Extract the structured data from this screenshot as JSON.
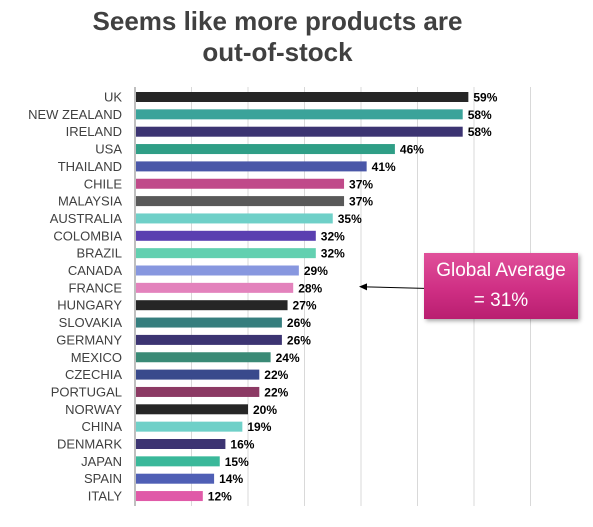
{
  "title_lines": [
    "Seems like more products are",
    "out-of-stock"
  ],
  "annotation_lines": [
    "Global Average",
    "= 31%"
  ],
  "chart_data": {
    "type": "bar",
    "orientation": "horizontal",
    "title": "Seems like more products are out-of-stock",
    "categories": [
      "UK",
      "NEW ZEALAND",
      "IRELAND",
      "USA",
      "THAILAND",
      "CHILE",
      "MALAYSIA",
      "AUSTRALIA",
      "COLOMBIA",
      "BRAZIL",
      "CANADA",
      "FRANCE",
      "HUNGARY",
      "SLOVAKIA",
      "GERMANY",
      "MEXICO",
      "CZECHIA",
      "PORTUGAL",
      "NORWAY",
      "CHINA",
      "DENMARK",
      "JAPAN",
      "SPAIN",
      "ITALY"
    ],
    "values": [
      59,
      58,
      58,
      46,
      41,
      37,
      37,
      35,
      32,
      32,
      29,
      28,
      27,
      26,
      26,
      24,
      22,
      22,
      20,
      19,
      16,
      15,
      14,
      12
    ],
    "value_labels": [
      "59%",
      "58%",
      "58%",
      "46%",
      "41%",
      "37%",
      "37%",
      "35%",
      "32%",
      "32%",
      "29%",
      "28%",
      "27%",
      "26%",
      "26%",
      "24%",
      "22%",
      "22%",
      "20%",
      "19%",
      "16%",
      "15%",
      "14%",
      "12%"
    ],
    "bar_colors": [
      "#262626",
      "#3aa39a",
      "#3c3472",
      "#2f9e86",
      "#4a57a8",
      "#c04a8a",
      "#595959",
      "#6fd0c8",
      "#5a3fb0",
      "#62d0b0",
      "#8797df",
      "#e382bc",
      "#262626",
      "#357e7e",
      "#3c3472",
      "#3a8a76",
      "#394a8c",
      "#8c3a64",
      "#262626",
      "#6fd0c8",
      "#3c3472",
      "#3ab89a",
      "#4f5fb5",
      "#e05aa8"
    ],
    "xlim": [
      0,
      70
    ],
    "x_gridlines": [
      0,
      10,
      20,
      30,
      40,
      50,
      60,
      70
    ],
    "grid": true,
    "annotation": {
      "text": "Global Average = 31%",
      "points_to": "FRANCE"
    }
  },
  "colors": {
    "title": "#404040",
    "axis_label": "#404040",
    "value_label": "#000000",
    "callout": "#cf2f84"
  }
}
